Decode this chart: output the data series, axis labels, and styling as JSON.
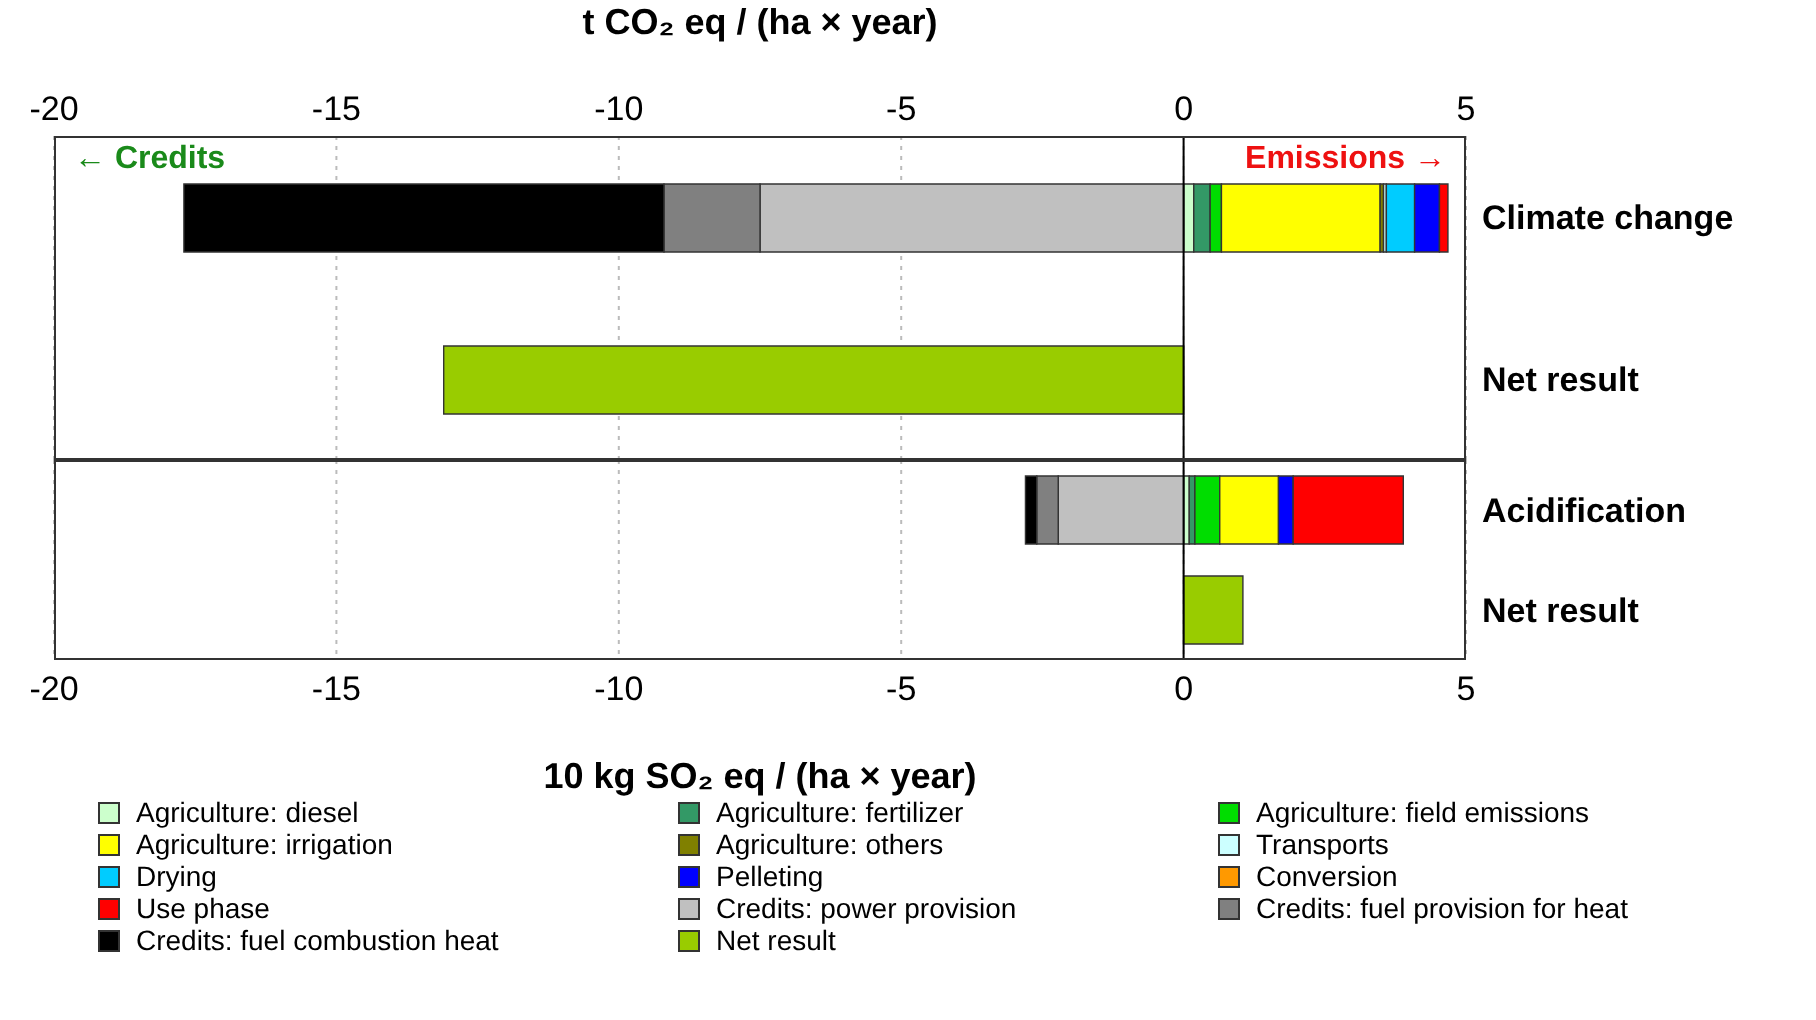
{
  "chart_data": [
    {
      "type": "bar",
      "orientation": "horizontal",
      "stacked": true,
      "xlabel": "t CO₂ eq / (ha × year)",
      "categories": [
        "Climate change",
        "Net result"
      ],
      "xlim": [
        -20,
        5
      ],
      "xticks": [
        -20,
        -15,
        -10,
        -5,
        0,
        5
      ],
      "grid": "x",
      "legend": false,
      "annotations": [
        "← Credits",
        "Emissions →"
      ],
      "ref_lines": [
        {
          "axis": "x",
          "value": 0
        }
      ],
      "series": [
        {
          "color": "#ccffcc",
          "values": [
            0.18,
            null
          ]
        },
        {
          "color": "#339966",
          "values": [
            0.29,
            null
          ]
        },
        {
          "color": "#00dd00",
          "values": [
            0.2,
            null
          ]
        },
        {
          "color": "#ffff00",
          "values": [
            2.81,
            null
          ]
        },
        {
          "color": "#808000",
          "values": [
            0.06,
            null
          ]
        },
        {
          "color": "#ccffff",
          "values": [
            0.05,
            null
          ]
        },
        {
          "color": "#00ccff",
          "values": [
            0.5,
            null
          ]
        },
        {
          "color": "#0000ff",
          "values": [
            0.44,
            null
          ]
        },
        {
          "color": "#ff9900",
          "values": [
            null,
            null
          ]
        },
        {
          "color": "#ff0000",
          "values": [
            0.15,
            null
          ]
        },
        {
          "color": "#c0c0c0",
          "values": [
            -7.5,
            null
          ]
        },
        {
          "color": "#808080",
          "values": [
            -1.7,
            null
          ]
        },
        {
          "color": "#000000",
          "values": [
            -8.5,
            null
          ]
        },
        {
          "color": "#99cc00",
          "values": [
            null,
            -13.1
          ]
        }
      ]
    },
    {
      "type": "bar",
      "orientation": "horizontal",
      "stacked": true,
      "xlabel": "10 kg SO₂ eq / (ha × year)",
      "categories": [
        "Acidification",
        "Net result"
      ],
      "xlim": [
        -20,
        5
      ],
      "xticks": [
        -20,
        -15,
        -10,
        -5,
        0,
        5
      ],
      "grid": "x",
      "legend": "bottom",
      "ref_lines": [
        {
          "axis": "x",
          "value": 0
        }
      ],
      "series": [
        {
          "name": "Agriculture: diesel",
          "color": "#ccffcc",
          "values": [
            0.1,
            null
          ]
        },
        {
          "name": "Agriculture: fertilizer",
          "color": "#339966",
          "values": [
            0.1,
            null
          ]
        },
        {
          "name": "Agriculture: field emissions",
          "color": "#00dd00",
          "values": [
            0.44,
            null
          ]
        },
        {
          "name": "Agriculture: irrigation",
          "color": "#ffff00",
          "values": [
            1.04,
            null
          ]
        },
        {
          "name": "Agriculture: others",
          "color": "#808000",
          "values": [
            null,
            null
          ]
        },
        {
          "name": "Transports",
          "color": "#ccffff",
          "values": [
            null,
            null
          ]
        },
        {
          "name": "Drying",
          "color": "#00ccff",
          "values": [
            null,
            null
          ]
        },
        {
          "name": "Pelleting",
          "color": "#0000ff",
          "values": [
            0.26,
            null
          ]
        },
        {
          "name": "Conversion",
          "color": "#ff9900",
          "values": [
            null,
            null
          ]
        },
        {
          "name": "Use phase",
          "color": "#ff0000",
          "values": [
            1.95,
            null
          ]
        },
        {
          "name": "Credits: power provision",
          "color": "#c0c0c0",
          "values": [
            -2.22,
            null
          ]
        },
        {
          "name": "Credits: fuel provision for heat",
          "color": "#808080",
          "values": [
            -0.38,
            null
          ]
        },
        {
          "name": "Credits: fuel combustion heat",
          "color": "#000000",
          "values": [
            -0.2,
            null
          ]
        },
        {
          "name": "Net result",
          "color": "#99cc00",
          "values": [
            null,
            1.05
          ]
        }
      ]
    }
  ]
}
